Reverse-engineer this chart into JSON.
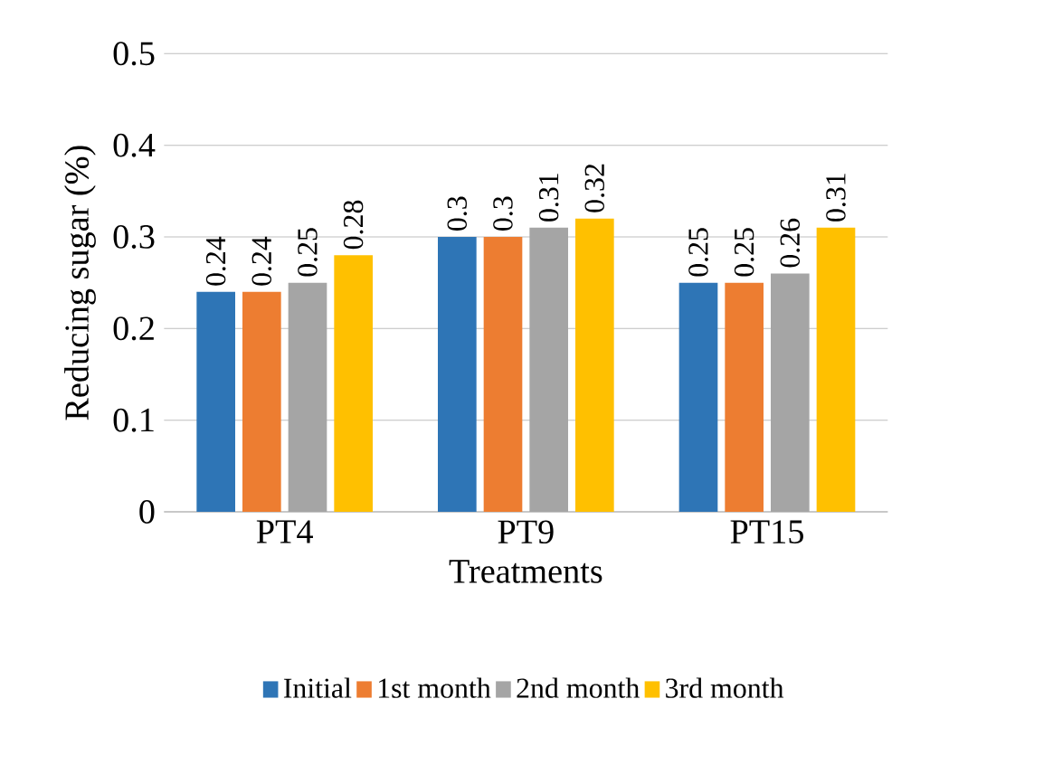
{
  "chart_data": {
    "type": "bar",
    "xlabel": "Treatments",
    "ylabel": "Reducing sugar (%)",
    "categories": [
      "PT4",
      "PT9",
      "PT15"
    ],
    "series": [
      {
        "name": "Initial",
        "color": "#2e75b6",
        "values": [
          0.24,
          0.3,
          0.25
        ]
      },
      {
        "name": "1st month",
        "color": "#ed7d31",
        "values": [
          0.24,
          0.3,
          0.25
        ]
      },
      {
        "name": "2nd month",
        "color": "#a5a5a5",
        "values": [
          0.25,
          0.31,
          0.26
        ]
      },
      {
        "name": "3rd month",
        "color": "#ffc000",
        "values": [
          0.28,
          0.32,
          0.31
        ]
      }
    ],
    "ylim": [
      0,
      0.5
    ],
    "yticks": [
      0,
      0.1,
      0.2,
      0.3,
      0.4,
      0.5
    ],
    "grid": "y",
    "legend": "bottom",
    "data_labels": true
  }
}
